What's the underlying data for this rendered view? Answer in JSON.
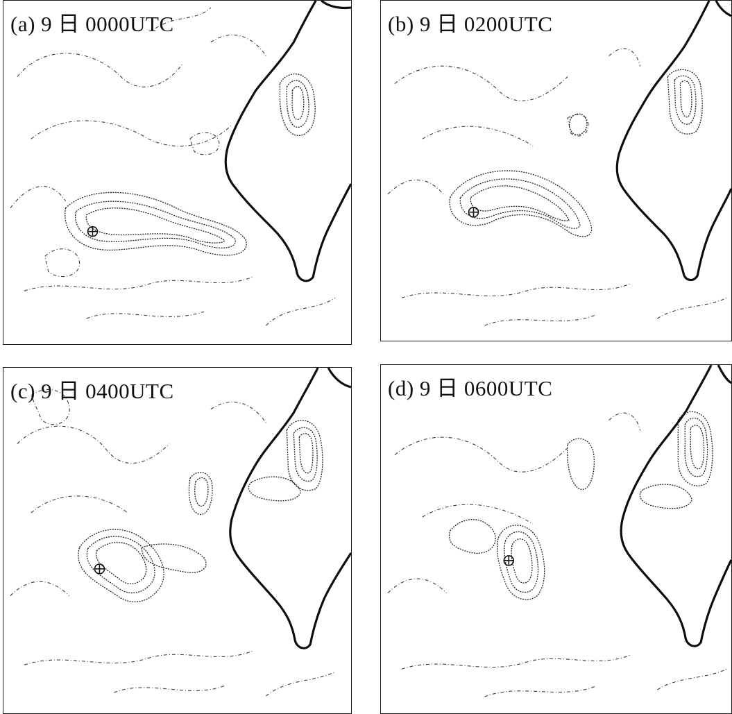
{
  "figure": {
    "panels": [
      {
        "id": "a",
        "label": "(a) 9 日 0000UTC"
      },
      {
        "id": "b",
        "label": "(b) 9 日 0200UTC"
      },
      {
        "id": "c",
        "label": "(c) 9 日 0400UTC"
      },
      {
        "id": "d",
        "label": "(d) 9 日 0600UTC"
      }
    ]
  }
}
